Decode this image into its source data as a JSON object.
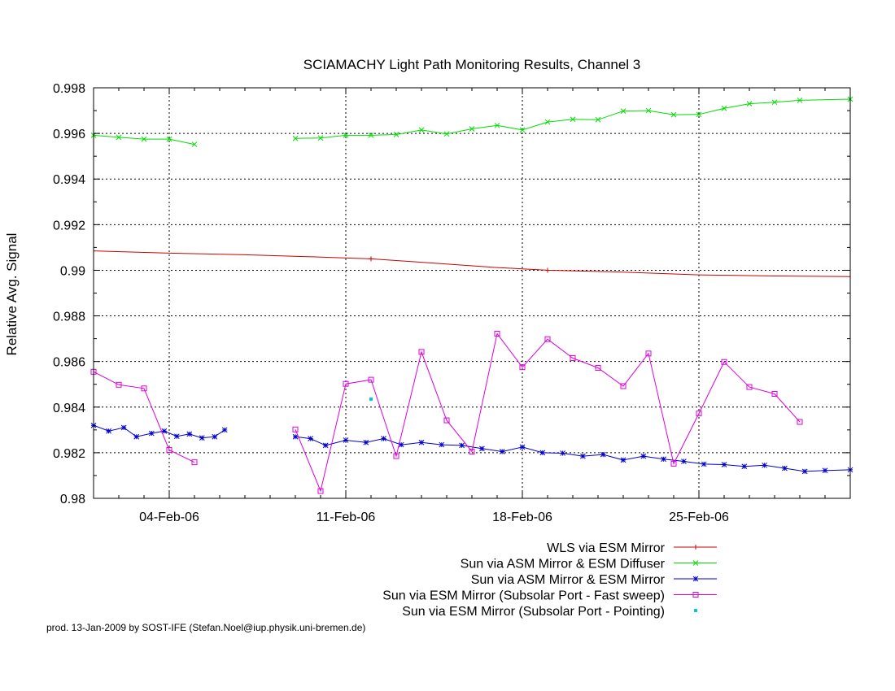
{
  "chart_data": {
    "type": "line",
    "title": "SCIAMACHY Light Path Monitoring Results, Channel 3",
    "ylabel": "Relative Avg. Signal",
    "xlabel": "",
    "ylim": [
      0.98,
      0.998
    ],
    "xlim": [
      "2006-02-01",
      "2006-03-03"
    ],
    "grid": true,
    "legend_position": "bottom-right",
    "y_ticks": [
      "0.98",
      "0.982",
      "0.984",
      "0.986",
      "0.988",
      "0.99",
      "0.992",
      "0.994",
      "0.996",
      "0.998"
    ],
    "x_ticks": [
      {
        "label": "04-Feb-06",
        "date": "2006-02-04"
      },
      {
        "label": "11-Feb-06",
        "date": "2006-02-11"
      },
      {
        "label": "18-Feb-06",
        "date": "2006-02-18"
      },
      {
        "label": "25-Feb-06",
        "date": "2006-02-25"
      }
    ],
    "series": [
      {
        "name": "WLS via ESM Mirror",
        "color": "#cc0000",
        "marker": "plus",
        "points": [
          [
            "2006-02-01",
            0.99085
          ],
          [
            "2006-02-04",
            0.99075
          ],
          [
            "2006-02-07",
            0.99068
          ],
          [
            "2006-02-10",
            0.99058
          ],
          [
            "2006-02-12",
            0.9905
          ],
          [
            "2006-02-14",
            0.99035
          ],
          [
            "2006-02-17",
            0.99012
          ],
          [
            "2006-02-19",
            0.99
          ],
          [
            "2006-02-22",
            0.98992
          ],
          [
            "2006-02-25",
            0.9898
          ],
          [
            "2006-02-28",
            0.98975
          ],
          [
            "2006-03-03",
            0.98972
          ]
        ],
        "marker_points": [
          [
            "2006-02-12",
            0.9905
          ],
          [
            "2006-02-19",
            0.99
          ]
        ]
      },
      {
        "name": "Sun via ASM Mirror & ESM Diffuser",
        "color": "#00dd00",
        "marker": "x",
        "segments": [
          [
            [
              "2006-02-01",
              0.99592
            ],
            [
              "2006-02-02",
              0.99583
            ],
            [
              "2006-02-03",
              0.99575
            ],
            [
              "2006-02-04",
              0.99575
            ],
            [
              "2006-02-05",
              0.99552
            ]
          ],
          [
            [
              "2006-02-09",
              0.99578
            ],
            [
              "2006-02-10",
              0.9958
            ],
            [
              "2006-02-11",
              0.99592
            ],
            [
              "2006-02-12",
              0.99592
            ],
            [
              "2006-02-13",
              0.99595
            ],
            [
              "2006-02-14",
              0.99615
            ],
            [
              "2006-02-15",
              0.99598
            ],
            [
              "2006-02-16",
              0.9962
            ],
            [
              "2006-02-17",
              0.99635
            ],
            [
              "2006-02-18",
              0.99615
            ],
            [
              "2006-02-19",
              0.9965
            ],
            [
              "2006-02-20",
              0.99662
            ],
            [
              "2006-02-21",
              0.9966
            ],
            [
              "2006-02-22",
              0.99698
            ],
            [
              "2006-02-23",
              0.997
            ],
            [
              "2006-02-24",
              0.99682
            ],
            [
              "2006-02-25",
              0.99683
            ],
            [
              "2006-02-26",
              0.9971
            ],
            [
              "2006-02-27",
              0.9973
            ],
            [
              "2006-02-28",
              0.99737
            ],
            [
              "2006-03-01",
              0.99745
            ],
            [
              "2006-03-03",
              0.9975
            ]
          ]
        ]
      },
      {
        "name": "Sun via ASM Mirror & ESM Mirror",
        "color": "#0000cc",
        "marker": "star",
        "segments": [
          [
            [
              "2006-02-01",
              0.9832
            ],
            [
              "2006-02-01.6",
              0.98295
            ],
            [
              "2006-02-02.2",
              0.9831
            ],
            [
              "2006-02-02.7",
              0.9827
            ],
            [
              "2006-02-03.3",
              0.98285
            ],
            [
              "2006-02-03.8",
              0.98295
            ],
            [
              "2006-02-04.3",
              0.98272
            ],
            [
              "2006-02-04.8",
              0.98282
            ],
            [
              "2006-02-05.3",
              0.98265
            ],
            [
              "2006-02-05.8",
              0.9827
            ],
            [
              "2006-02-06.2",
              0.983
            ]
          ],
          [
            [
              "2006-02-09",
              0.9827
            ],
            [
              "2006-02-09.6",
              0.98262
            ],
            [
              "2006-02-10.2",
              0.98232
            ],
            [
              "2006-02-11",
              0.98255
            ],
            [
              "2006-02-11.8",
              0.98245
            ],
            [
              "2006-02-12.5",
              0.98262
            ],
            [
              "2006-02-13.2",
              0.98235
            ],
            [
              "2006-02-14",
              0.98245
            ],
            [
              "2006-02-14.8",
              0.98235
            ],
            [
              "2006-02-15.6",
              0.98232
            ],
            [
              "2006-02-16.4",
              0.98218
            ],
            [
              "2006-02-17.2",
              0.98205
            ],
            [
              "2006-02-18",
              0.98225
            ],
            [
              "2006-02-18.8",
              0.982
            ],
            [
              "2006-02-19.6",
              0.98198
            ],
            [
              "2006-02-20.4",
              0.98185
            ],
            [
              "2006-02-21.2",
              0.98192
            ],
            [
              "2006-02-22",
              0.98168
            ],
            [
              "2006-02-22.8",
              0.98185
            ],
            [
              "2006-02-23.6",
              0.98172
            ],
            [
              "2006-02-24.4",
              0.98162
            ],
            [
              "2006-02-25.2",
              0.9815
            ],
            [
              "2006-02-26",
              0.98148
            ],
            [
              "2006-02-26.8",
              0.9814
            ],
            [
              "2006-02-27.6",
              0.98145
            ],
            [
              "2006-02-28.4",
              0.98132
            ],
            [
              "2006-03-01.2",
              0.98118
            ],
            [
              "2006-03-02",
              0.98122
            ],
            [
              "2006-03-03",
              0.98125
            ]
          ]
        ]
      },
      {
        "name": "Sun via ESM Mirror (Subsolar Port - Fast sweep)",
        "color": "#dd00dd",
        "marker": "square",
        "segments": [
          [
            [
              "2006-02-01",
              0.98555
            ],
            [
              "2006-02-02",
              0.98498
            ],
            [
              "2006-02-03",
              0.98482
            ],
            [
              "2006-02-04",
              0.98212
            ],
            [
              "2006-02-05",
              0.98158
            ]
          ],
          [
            [
              "2006-02-09",
              0.98302
            ],
            [
              "2006-02-10",
              0.98032
            ],
            [
              "2006-02-11",
              0.98502
            ],
            [
              "2006-02-12",
              0.9852
            ],
            [
              "2006-02-13",
              0.98185
            ],
            [
              "2006-02-14",
              0.98642
            ],
            [
              "2006-02-15",
              0.98342
            ],
            [
              "2006-02-16",
              0.98205
            ],
            [
              "2006-02-17",
              0.98722
            ],
            [
              "2006-02-18",
              0.98575
            ],
            [
              "2006-02-19",
              0.98698
            ],
            [
              "2006-02-20",
              0.98615
            ],
            [
              "2006-02-21",
              0.98572
            ],
            [
              "2006-02-22",
              0.98492
            ],
            [
              "2006-02-23",
              0.98635
            ],
            [
              "2006-02-24",
              0.98152
            ],
            [
              "2006-02-25",
              0.98372
            ],
            [
              "2006-02-26",
              0.98598
            ],
            [
              "2006-02-27",
              0.98488
            ],
            [
              "2006-02-28",
              0.98458
            ],
            [
              "2006-03-01",
              0.98335
            ]
          ]
        ]
      },
      {
        "name": "Sun via ESM Mirror (Subsolar Port - Pointing)",
        "color": "#00cccc",
        "marker": "dot",
        "segments": [
          [
            [
              "2006-02-12",
              0.98435
            ]
          ]
        ]
      }
    ]
  },
  "footer": "prod. 13-Jan-2009 by SOST-IFE (Stefan.Noel@iup.physik.uni-bremen.de)"
}
